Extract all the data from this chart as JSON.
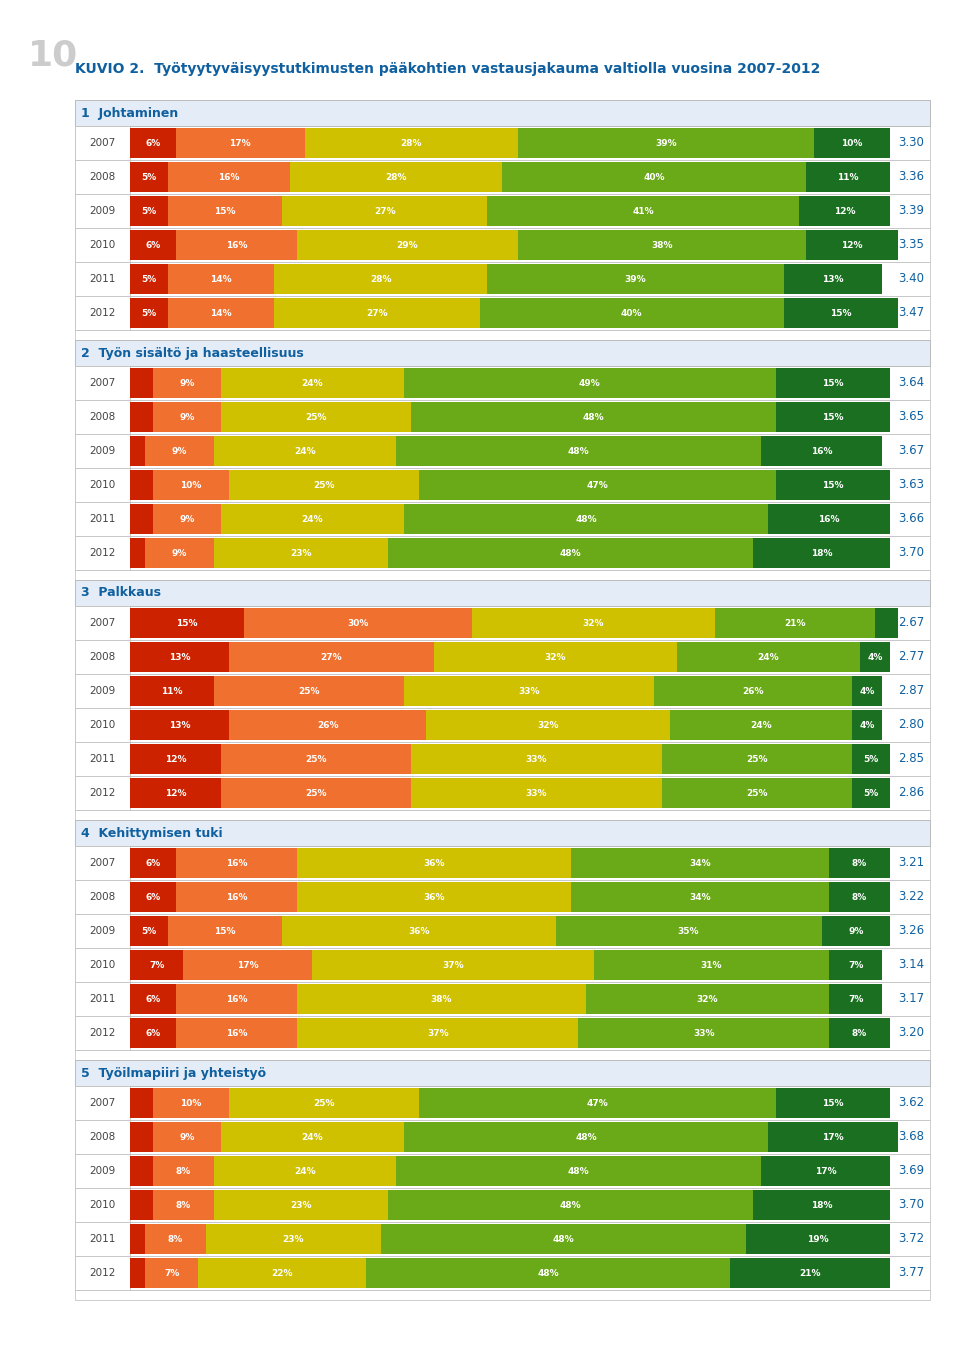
{
  "title": "KUVIO 2.  Työtyytyväisyystutkimusten pääkohtien vastausjakauma valtiolla vuosina 2007-2012",
  "page_number": "10",
  "colors": {
    "red": "#cc2200",
    "orange": "#f07030",
    "yellow": "#cfc000",
    "light_green": "#6aaa18",
    "dark_green": "#1a7020",
    "header_blue": "#1060a0",
    "bg_white": "#ffffff",
    "border": "#bbbbbb"
  },
  "sections": [
    {
      "number": "1",
      "title": "Johtaminen",
      "years": [
        2007,
        2008,
        2009,
        2010,
        2011,
        2012
      ],
      "data": [
        [
          6,
          17,
          28,
          39,
          10
        ],
        [
          5,
          16,
          28,
          40,
          11
        ],
        [
          5,
          15,
          27,
          41,
          12
        ],
        [
          6,
          16,
          29,
          38,
          12
        ],
        [
          5,
          14,
          28,
          39,
          13
        ],
        [
          5,
          14,
          27,
          40,
          15
        ]
      ],
      "scores": [
        3.3,
        3.36,
        3.39,
        3.35,
        3.4,
        3.47
      ]
    },
    {
      "number": "2",
      "title": "Työn sisältö ja haasteellisuus",
      "years": [
        2007,
        2008,
        2009,
        2010,
        2011,
        2012
      ],
      "data": [
        [
          3,
          9,
          24,
          49,
          15
        ],
        [
          3,
          9,
          25,
          48,
          15
        ],
        [
          2,
          9,
          24,
          48,
          16
        ],
        [
          3,
          10,
          25,
          47,
          15
        ],
        [
          3,
          9,
          24,
          48,
          16
        ],
        [
          2,
          9,
          23,
          48,
          18
        ]
      ],
      "scores": [
        3.64,
        3.65,
        3.67,
        3.63,
        3.66,
        3.7
      ]
    },
    {
      "number": "3",
      "title": "Palkkaus",
      "years": [
        2007,
        2008,
        2009,
        2010,
        2011,
        2012
      ],
      "data": [
        [
          15,
          30,
          32,
          21,
          3
        ],
        [
          13,
          27,
          32,
          24,
          4
        ],
        [
          11,
          25,
          33,
          26,
          4
        ],
        [
          13,
          26,
          32,
          24,
          4
        ],
        [
          12,
          25,
          33,
          25,
          5
        ],
        [
          12,
          25,
          33,
          25,
          5
        ]
      ],
      "scores": [
        2.67,
        2.77,
        2.87,
        2.8,
        2.85,
        2.86
      ]
    },
    {
      "number": "4",
      "title": "Kehittymisen tuki",
      "years": [
        2007,
        2008,
        2009,
        2010,
        2011,
        2012
      ],
      "data": [
        [
          6,
          16,
          36,
          34,
          8
        ],
        [
          6,
          16,
          36,
          34,
          8
        ],
        [
          5,
          15,
          36,
          35,
          9
        ],
        [
          7,
          17,
          37,
          31,
          7
        ],
        [
          6,
          16,
          38,
          32,
          7
        ],
        [
          6,
          16,
          37,
          33,
          8
        ]
      ],
      "scores": [
        3.21,
        3.22,
        3.26,
        3.14,
        3.17,
        3.2
      ]
    },
    {
      "number": "5",
      "title": "Työilmapiiri ja yhteistyö",
      "years": [
        2007,
        2008,
        2009,
        2010,
        2011,
        2012
      ],
      "data": [
        [
          3,
          10,
          25,
          47,
          15
        ],
        [
          3,
          9,
          24,
          48,
          17
        ],
        [
          3,
          8,
          24,
          48,
          17
        ],
        [
          3,
          8,
          23,
          48,
          18
        ],
        [
          2,
          8,
          23,
          48,
          19
        ],
        [
          2,
          7,
          22,
          48,
          21
        ]
      ],
      "scores": [
        3.62,
        3.68,
        3.69,
        3.7,
        3.72,
        3.77
      ]
    }
  ]
}
